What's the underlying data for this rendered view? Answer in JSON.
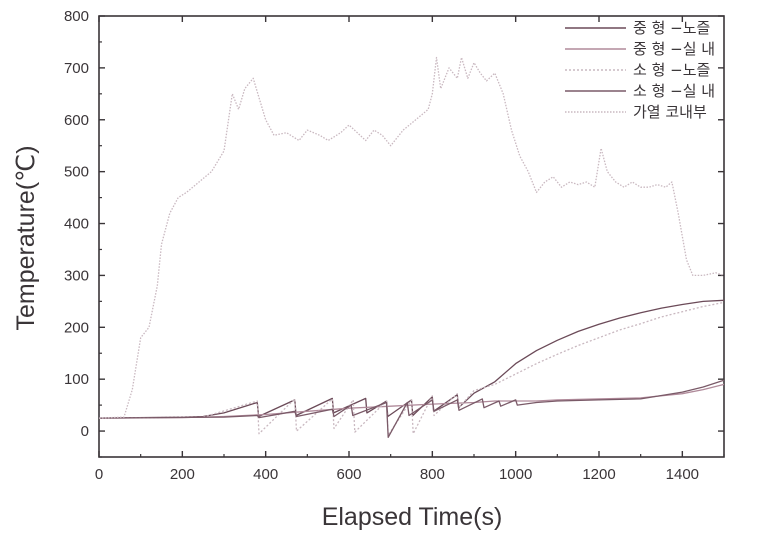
{
  "chart_data": {
    "type": "line",
    "title": "",
    "xlabel": "Elapsed Time(s)",
    "ylabel": "Temperature(℃)",
    "xlim": [
      0,
      1500
    ],
    "ylim": [
      -50,
      800
    ],
    "xticks": [
      "0",
      "200",
      "400",
      "600",
      "800",
      "1000",
      "1200",
      "1400"
    ],
    "xtick_values": [
      0,
      200,
      400,
      600,
      800,
      1000,
      1200,
      1400
    ],
    "yticks": [
      "0",
      "100",
      "200",
      "300",
      "400",
      "500",
      "600",
      "700",
      "800"
    ],
    "ytick_values": [
      0,
      100,
      200,
      300,
      400,
      500,
      600,
      700,
      800
    ],
    "grid": false,
    "legend_position": "top-right",
    "series": [
      {
        "name": "중 형 −노즐",
        "color": "#6b4a58",
        "dash": "",
        "x": [
          0,
          200,
          250,
          300,
          380,
          383,
          470,
          473,
          560,
          563,
          640,
          643,
          690,
          693,
          750,
          753,
          800,
          803,
          860,
          863,
          900,
          950,
          1000,
          1050,
          1100,
          1150,
          1200,
          1250,
          1300,
          1350,
          1400,
          1450,
          1500
        ],
        "y": [
          25,
          27,
          28,
          35,
          55,
          28,
          60,
          30,
          63,
          35,
          63,
          35,
          58,
          28,
          60,
          30,
          66,
          38,
          70,
          45,
          73,
          95,
          130,
          155,
          175,
          192,
          206,
          218,
          228,
          237,
          244,
          250,
          252
        ]
      },
      {
        "name": "중 형 −실 내",
        "color": "#b08a9a",
        "dash": "",
        "x": [
          0,
          200,
          300,
          400,
          500,
          600,
          700,
          800,
          900,
          950,
          1000,
          1050,
          1100,
          1200,
          1300,
          1400,
          1450,
          1500
        ],
        "y": [
          25,
          26,
          28,
          32,
          38,
          44,
          48,
          52,
          55,
          58,
          58,
          58,
          60,
          62,
          64,
          72,
          80,
          90
        ]
      },
      {
        "name": "소 형 −노즐",
        "color": "#c9b8c0",
        "dash": "2 2",
        "x": [
          0,
          250,
          380,
          384,
          470,
          474,
          560,
          564,
          610,
          614,
          690,
          694,
          750,
          754,
          800,
          804,
          860,
          864,
          900,
          950,
          1000,
          1050,
          1100,
          1150,
          1200,
          1250,
          1300,
          1350,
          1400,
          1450,
          1500
        ],
        "y": [
          25,
          27,
          58,
          -5,
          62,
          0,
          62,
          5,
          60,
          -2,
          58,
          -8,
          60,
          -5,
          68,
          30,
          72,
          45,
          78,
          90,
          110,
          130,
          148,
          165,
          180,
          195,
          207,
          220,
          230,
          240,
          248
        ]
      },
      {
        "name": "소 형 −실 내",
        "color": "#7a5a68",
        "dash": "",
        "x": [
          0,
          300,
          380,
          384,
          470,
          474,
          560,
          564,
          605,
          609,
          690,
          694,
          740,
          744,
          800,
          804,
          860,
          864,
          920,
          924,
          960,
          964,
          1000,
          1004,
          1050,
          1100,
          1200,
          1300,
          1400,
          1450,
          1500
        ],
        "y": [
          25,
          27,
          30,
          26,
          38,
          28,
          42,
          28,
          50,
          30,
          55,
          -12,
          55,
          30,
          60,
          38,
          60,
          40,
          62,
          45,
          58,
          48,
          60,
          50,
          55,
          58,
          60,
          62,
          75,
          85,
          98
        ]
      },
      {
        "name": "가열 코내부",
        "color": "#c9b8c0",
        "dash": "1.5 1.5",
        "x": [
          0,
          60,
          80,
          100,
          120,
          140,
          150,
          170,
          190,
          210,
          240,
          270,
          300,
          320,
          335,
          350,
          370,
          385,
          400,
          420,
          450,
          480,
          500,
          530,
          550,
          580,
          600,
          620,
          640,
          660,
          680,
          700,
          730,
          760,
          790,
          800,
          810,
          820,
          840,
          860,
          870,
          885,
          900,
          915,
          930,
          950,
          970,
          990,
          1010,
          1030,
          1050,
          1070,
          1090,
          1110,
          1130,
          1150,
          1170,
          1190,
          1205,
          1220,
          1240,
          1260,
          1280,
          1300,
          1320,
          1340,
          1360,
          1375,
          1390,
          1410,
          1425,
          1450,
          1480,
          1500
        ],
        "y": [
          25,
          27,
          80,
          180,
          200,
          280,
          360,
          420,
          450,
          460,
          480,
          500,
          540,
          650,
          620,
          660,
          680,
          640,
          600,
          570,
          575,
          560,
          580,
          570,
          560,
          575,
          590,
          575,
          560,
          580,
          570,
          550,
          580,
          600,
          620,
          650,
          720,
          660,
          700,
          680,
          720,
          680,
          710,
          690,
          675,
          690,
          650,
          580,
          530,
          500,
          460,
          480,
          490,
          470,
          480,
          475,
          480,
          470,
          545,
          500,
          480,
          470,
          480,
          470,
          470,
          475,
          470,
          480,
          420,
          330,
          300,
          300,
          305,
          300
        ]
      }
    ]
  }
}
